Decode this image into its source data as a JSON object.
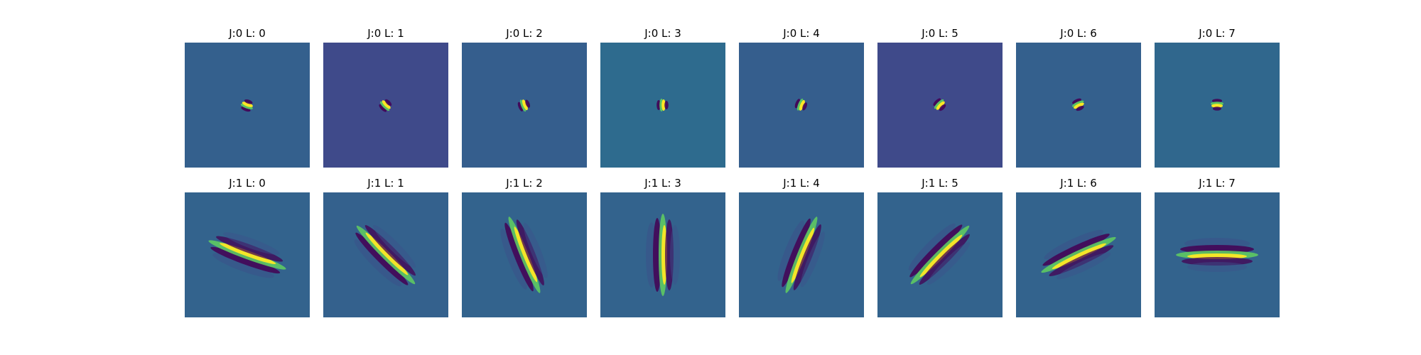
{
  "chart_data": {
    "type": "heatmap",
    "description_rows": [
      "J:0",
      "J:1"
    ],
    "colormap": "viridis",
    "panels": [
      {
        "title": "J:0 L: 0",
        "j": 0,
        "l": 0,
        "background": "#34608d"
      },
      {
        "title": "J:0 L: 1",
        "j": 0,
        "l": 1,
        "background": "#3f4a8a"
      },
      {
        "title": "J:0 L: 2",
        "j": 0,
        "l": 2,
        "background": "#355e8d"
      },
      {
        "title": "J:0 L: 3",
        "j": 0,
        "l": 3,
        "background": "#2e6b8e"
      },
      {
        "title": "J:0 L: 4",
        "j": 0,
        "l": 4,
        "background": "#355e8d"
      },
      {
        "title": "J:0 L: 5",
        "j": 0,
        "l": 5,
        "background": "#3f4a8a"
      },
      {
        "title": "J:0 L: 6",
        "j": 0,
        "l": 6,
        "background": "#34608d"
      },
      {
        "title": "J:0 L: 7",
        "j": 0,
        "l": 7,
        "background": "#30678d"
      },
      {
        "title": "J:1 L: 0",
        "j": 1,
        "l": 0,
        "background": "#33638d"
      },
      {
        "title": "J:1 L: 1",
        "j": 1,
        "l": 1,
        "background": "#34618d"
      },
      {
        "title": "J:1 L: 2",
        "j": 1,
        "l": 2,
        "background": "#33638d"
      },
      {
        "title": "J:1 L: 3",
        "j": 1,
        "l": 3,
        "background": "#33638d"
      },
      {
        "title": "J:1 L: 4",
        "j": 1,
        "l": 4,
        "background": "#33638d"
      },
      {
        "title": "J:1 L: 5",
        "j": 1,
        "l": 5,
        "background": "#33638d"
      },
      {
        "title": "J:1 L: 6",
        "j": 1,
        "l": 6,
        "background": "#33638d"
      },
      {
        "title": "J:1 L: 7",
        "j": 1,
        "l": 7,
        "background": "#33638d"
      }
    ],
    "filter_colors": {
      "positive_peak": "#fde725",
      "positive_mid": "#5ec962",
      "negative_peak": "#440154",
      "negative_mid": "#3b528b"
    }
  }
}
